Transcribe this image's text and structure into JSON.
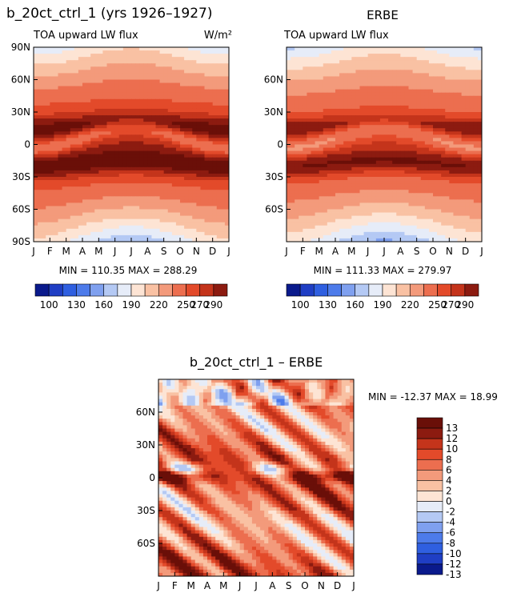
{
  "figure_title": "b_20ct_ctrl_1 (yrs 1926–1927)",
  "colors": {
    "abs": [
      "#0a1a8c",
      "#1f3ec4",
      "#2f5fe0",
      "#4d7bea",
      "#7fa0ef",
      "#b4c9f4",
      "#e6ecf8",
      "#fde4d4",
      "#f9c1a3",
      "#f39a7b",
      "#ec6e4f",
      "#e34a2a",
      "#c4341b",
      "#8c1b10"
    ],
    "diff": [
      "#0a1a8c",
      "#1f3ec4",
      "#2f5fe0",
      "#4d7bea",
      "#7fa0ef",
      "#b4c9f4",
      "#e6ecf8",
      "#fde4d4",
      "#f9c1a3",
      "#f39a7b",
      "#ec6e4f",
      "#e34a2a",
      "#c4341b",
      "#8c1b10"
    ]
  },
  "chart_data": [
    {
      "type": "heatmap",
      "title": "",
      "subtitle": "TOA upward LW flux",
      "units": "W/m²",
      "x_categories": [
        "J",
        "F",
        "M",
        "A",
        "M",
        "J",
        "J",
        "A",
        "S",
        "O",
        "N",
        "D",
        "J"
      ],
      "y_ticks": [
        "90N",
        "60N",
        "30N",
        "0",
        "30S",
        "60S",
        "90S"
      ],
      "stats": "MIN = 110.35 MAX = 288.29",
      "min": 110.35,
      "max": 288.29,
      "legend_labels": [
        "100",
        "130",
        "160",
        "190",
        "220",
        "250",
        "270",
        "290"
      ],
      "legend_levels": [
        100,
        115,
        130,
        145,
        160,
        175,
        190,
        205,
        220,
        235,
        250,
        260,
        270,
        280,
        290
      ]
    },
    {
      "type": "heatmap",
      "title": "ERBE",
      "subtitle": "TOA upward LW flux",
      "units": "",
      "x_categories": [
        "J",
        "F",
        "M",
        "A",
        "M",
        "J",
        "J",
        "A",
        "S",
        "O",
        "N",
        "D",
        "J"
      ],
      "y_ticks": [
        "",
        "60N",
        "30N",
        "0",
        "30S",
        "60S",
        ""
      ],
      "stats": "MIN = 111.33 MAX = 279.97",
      "min": 111.33,
      "max": 279.97,
      "legend_labels": [
        "100",
        "130",
        "160",
        "190",
        "220",
        "250",
        "270",
        "290"
      ],
      "legend_levels": [
        100,
        115,
        130,
        145,
        160,
        175,
        190,
        205,
        220,
        235,
        250,
        260,
        270,
        280,
        290
      ]
    },
    {
      "type": "heatmap",
      "title": "b_20ct_ctrl_1 – ERBE",
      "subtitle": "",
      "units": "",
      "x_categories": [
        "J",
        "F",
        "M",
        "A",
        "M",
        "J",
        "J",
        "A",
        "S",
        "O",
        "N",
        "D",
        "J"
      ],
      "y_ticks": [
        "",
        "60N",
        "30N",
        "0",
        "30S",
        "60S",
        ""
      ],
      "stats": "MIN = -12.37 MAX =  18.99",
      "min": -12.37,
      "max": 18.99,
      "legend_labels": [
        "13",
        "12",
        "10",
        "8",
        "6",
        "4",
        "2",
        "0",
        "-2",
        "-4",
        "-6",
        "-8",
        "-10",
        "-12",
        "-13"
      ]
    }
  ]
}
